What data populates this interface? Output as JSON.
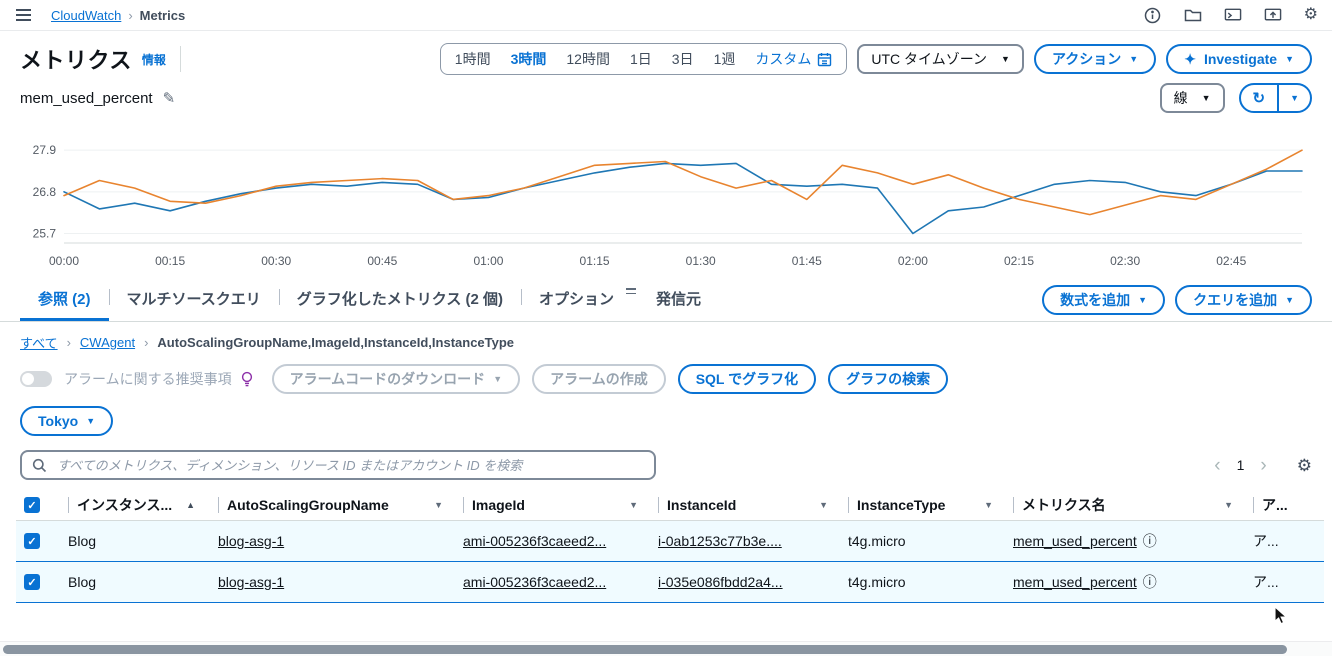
{
  "colors": {
    "accent": "#0972d3",
    "selected_row_bg": "#f0fbff",
    "series_blue": "#1f77b4",
    "series_orange": "#e8842f"
  },
  "icons": {
    "caret_down": "▼",
    "sort_asc": "▲",
    "refresh": "↻",
    "pencil": "✎",
    "sparkle": "✦",
    "info_circle": "ⓘ",
    "gear": "⚙",
    "chevron_left": "‹",
    "chevron_right": "›",
    "breadcrumb_sep": "›",
    "check": "✓"
  },
  "topbar": {
    "app_link": "CloudWatch",
    "page": "Metrics"
  },
  "header": {
    "title": "メトリクス",
    "info_link": "情報",
    "timezone": "UTC タイムゾーン",
    "actions": "アクション",
    "investigate": "Investigate"
  },
  "time_control": {
    "items": [
      "1時間",
      "3時間",
      "12時間",
      "1日",
      "3日",
      "1週"
    ],
    "custom": "カスタム",
    "selected": "3時間"
  },
  "graph": {
    "title": "mem_used_percent",
    "type_select": "線"
  },
  "chart_data": {
    "type": "line",
    "title": "mem_used_percent",
    "ylabel": "",
    "xlabel": "",
    "grid": true,
    "legend": "none",
    "ylim": [
      25.45,
      28.3
    ],
    "yticks": [
      25.7,
      26.8,
      27.9
    ],
    "xtick_labels": [
      "00:00",
      "00:15",
      "00:30",
      "00:45",
      "01:00",
      "01:15",
      "01:30",
      "01:45",
      "02:00",
      "02:15",
      "02:30",
      "02:45"
    ],
    "xtick_minutes": [
      0,
      15,
      30,
      45,
      60,
      75,
      90,
      105,
      120,
      135,
      150,
      165
    ],
    "x_minutes": [
      0,
      5,
      10,
      15,
      20,
      25,
      30,
      35,
      40,
      45,
      50,
      55,
      60,
      65,
      70,
      75,
      80,
      85,
      90,
      95,
      100,
      105,
      110,
      115,
      120,
      125,
      130,
      135,
      140,
      145,
      150,
      155,
      160,
      165,
      170,
      175
    ],
    "series": [
      {
        "name": "blue-series",
        "color": "#1f77b4",
        "values": [
          26.8,
          26.35,
          26.5,
          26.3,
          26.55,
          26.75,
          26.9,
          27.0,
          26.95,
          27.05,
          27.0,
          26.6,
          26.65,
          26.9,
          27.1,
          27.3,
          27.45,
          27.55,
          27.5,
          27.55,
          27.0,
          26.95,
          27.0,
          26.9,
          25.7,
          26.3,
          26.4,
          26.7,
          27.0,
          27.1,
          27.05,
          26.8,
          26.7,
          27.0,
          27.35,
          27.35
        ]
      },
      {
        "name": "orange-series",
        "color": "#e8842f",
        "values": [
          26.7,
          27.1,
          26.9,
          26.55,
          26.5,
          26.7,
          26.95,
          27.05,
          27.1,
          27.15,
          27.1,
          26.6,
          26.7,
          26.9,
          27.2,
          27.5,
          27.55,
          27.6,
          27.2,
          26.9,
          27.1,
          26.6,
          27.5,
          27.3,
          27.0,
          27.25,
          26.9,
          26.6,
          26.4,
          26.2,
          26.45,
          26.7,
          26.6,
          27.0,
          27.4,
          27.9
        ]
      }
    ]
  },
  "tabs": [
    "参照 (2)",
    "マルチソースクエリ",
    "グラフ化したメトリクス (2 個)",
    "オプション",
    "発信元"
  ],
  "tab_actions": {
    "add_math": "数式を追加",
    "add_query": "クエリを追加"
  },
  "crumbs": {
    "all": "すべて",
    "namespace": "CWAgent",
    "dimensions": "AutoScalingGroupName,ImageId,InstanceId,InstanceType"
  },
  "alarm_bar": {
    "toggle_label": "アラームに関する推奨事項",
    "download": "アラームコードのダウンロード",
    "create": "アラームの作成",
    "sql": "SQL でグラフ化",
    "search": "グラフの検索"
  },
  "region": {
    "label": "Tokyo"
  },
  "search": {
    "placeholder": "すべてのメトリクス、ディメンション、リソース ID またはアカウント ID を検索"
  },
  "pagination": {
    "page": "1"
  },
  "table": {
    "columns": [
      "インスタンス...",
      "AutoScalingGroupName",
      "ImageId",
      "InstanceId",
      "InstanceType",
      "メトリクス名",
      "ア..."
    ],
    "rows": [
      [
        "Blog",
        "blog-asg-1",
        "ami-005236f3caeed2...",
        "i-0ab1253c77b3e....",
        "t4g.micro",
        "mem_used_percent",
        "ア..."
      ],
      [
        "Blog",
        "blog-asg-1",
        "ami-005236f3caeed2...",
        "i-035e086fbdd2a4...",
        "t4g.micro",
        "mem_used_percent",
        "ア..."
      ]
    ]
  }
}
